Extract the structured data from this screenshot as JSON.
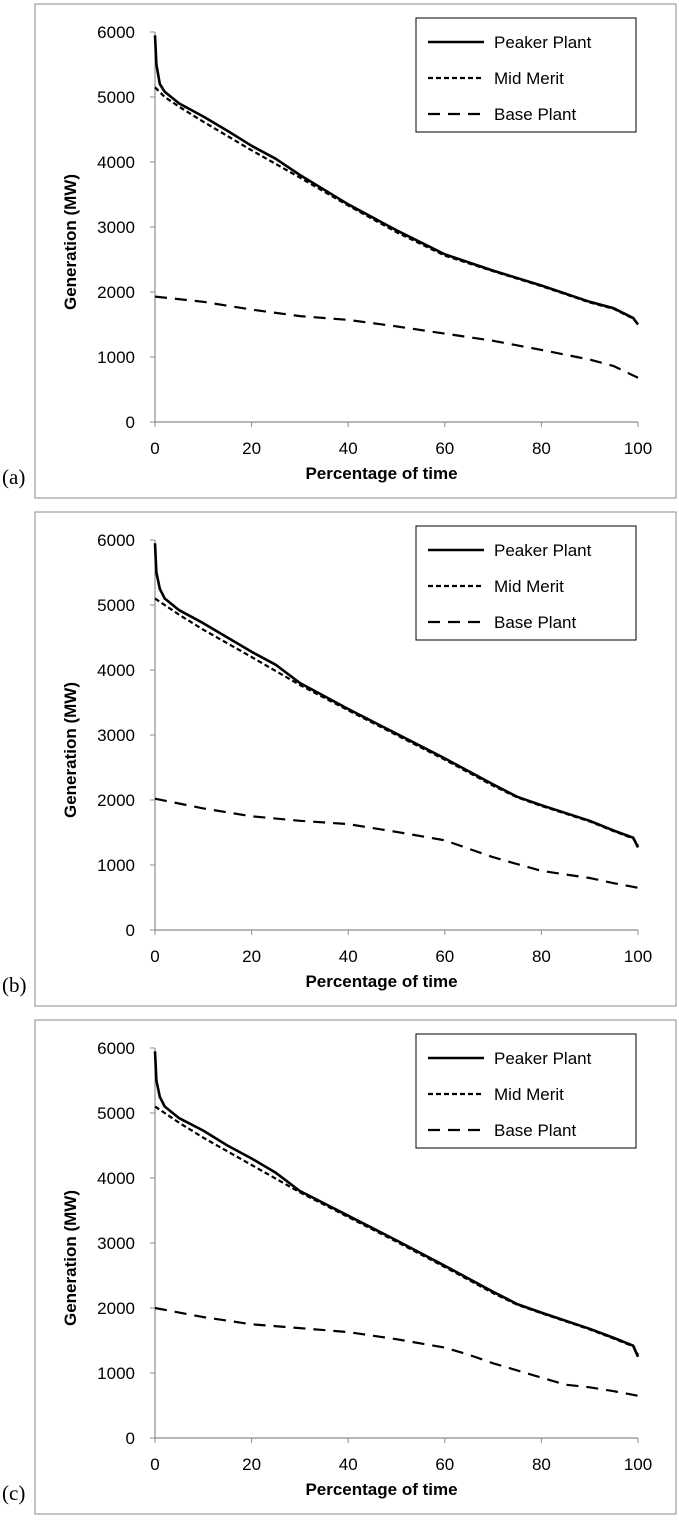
{
  "chart_data": [
    {
      "panel_label": "(a)",
      "type": "line",
      "xlabel": "Percentage of time",
      "ylabel": "Generation (MW)",
      "xlim": [
        0,
        100
      ],
      "ylim": [
        0,
        6000
      ],
      "xticks": [
        "0",
        "20",
        "40",
        "60",
        "80",
        "100"
      ],
      "yticks": [
        "0",
        "1000",
        "2000",
        "3000",
        "4000",
        "5000",
        "6000"
      ],
      "legend_position": "top-right",
      "series": [
        {
          "name": "Peaker Plant",
          "style": "solid",
          "x": [
            0,
            0.3,
            1,
            2,
            5,
            10,
            15,
            20,
            25,
            30,
            40,
            50,
            60,
            70,
            80,
            90,
            95,
            99,
            100
          ],
          "y": [
            5950,
            5500,
            5200,
            5080,
            4900,
            4700,
            4480,
            4250,
            4050,
            3800,
            3350,
            2950,
            2580,
            2330,
            2100,
            1850,
            1750,
            1600,
            1500
          ]
        },
        {
          "name": "Mid Merit",
          "style": "dotted",
          "x": [
            0,
            2,
            5,
            10,
            20,
            30,
            40,
            50,
            60,
            70,
            80,
            90,
            95,
            99,
            100
          ],
          "y": [
            5150,
            5000,
            4850,
            4620,
            4180,
            3760,
            3330,
            2920,
            2560,
            2320,
            2090,
            1840,
            1740,
            1590,
            1500
          ]
        },
        {
          "name": "Base Plant",
          "style": "dashed",
          "x": [
            0,
            10,
            20,
            30,
            40,
            50,
            60,
            70,
            80,
            90,
            95,
            100
          ],
          "y": [
            1930,
            1850,
            1730,
            1630,
            1570,
            1470,
            1360,
            1250,
            1110,
            960,
            860,
            680
          ]
        }
      ]
    },
    {
      "panel_label": "(b)",
      "type": "line",
      "xlabel": "Percentage of time",
      "ylabel": "Generation (MW)",
      "xlim": [
        0,
        100
      ],
      "ylim": [
        0,
        6000
      ],
      "xticks": [
        "0",
        "20",
        "40",
        "60",
        "80",
        "100"
      ],
      "yticks": [
        "0",
        "1000",
        "2000",
        "3000",
        "4000",
        "5000",
        "6000"
      ],
      "legend_position": "top-right",
      "series": [
        {
          "name": "Peaker Plant",
          "style": "solid",
          "x": [
            0,
            0.3,
            1,
            2,
            5,
            10,
            15,
            20,
            25,
            30,
            40,
            50,
            60,
            70,
            75,
            80,
            90,
            95,
            99,
            100
          ],
          "y": [
            5950,
            5500,
            5250,
            5100,
            4920,
            4720,
            4500,
            4280,
            4080,
            3800,
            3400,
            3020,
            2640,
            2240,
            2050,
            1920,
            1680,
            1530,
            1420,
            1270
          ]
        },
        {
          "name": "Mid Merit",
          "style": "dotted",
          "x": [
            0,
            2,
            5,
            10,
            20,
            30,
            40,
            50,
            60,
            70,
            75,
            80,
            90,
            95,
            99,
            100
          ],
          "y": [
            5100,
            5000,
            4850,
            4620,
            4200,
            3770,
            3380,
            3000,
            2620,
            2220,
            2040,
            1910,
            1670,
            1520,
            1410,
            1300
          ]
        },
        {
          "name": "Base Plant",
          "style": "dashed",
          "x": [
            0,
            10,
            20,
            30,
            40,
            50,
            60,
            65,
            70,
            80,
            90,
            95,
            100
          ],
          "y": [
            2020,
            1870,
            1750,
            1680,
            1630,
            1510,
            1380,
            1250,
            1120,
            910,
            800,
            720,
            650
          ]
        }
      ]
    },
    {
      "panel_label": "(c)",
      "type": "line",
      "xlabel": "Percentage of time",
      "ylabel": "Generation (MW)",
      "xlim": [
        0,
        100
      ],
      "ylim": [
        0,
        6000
      ],
      "xticks": [
        "0",
        "20",
        "40",
        "60",
        "80",
        "100"
      ],
      "yticks": [
        "0",
        "1000",
        "2000",
        "3000",
        "4000",
        "5000",
        "6000"
      ],
      "legend_position": "top-right",
      "series": [
        {
          "name": "Peaker Plant",
          "style": "solid",
          "x": [
            0,
            0.3,
            1,
            2,
            5,
            10,
            15,
            20,
            25,
            30,
            40,
            50,
            60,
            70,
            75,
            80,
            90,
            95,
            99,
            100
          ],
          "y": [
            5950,
            5500,
            5250,
            5100,
            4920,
            4730,
            4500,
            4300,
            4080,
            3800,
            3420,
            3040,
            2650,
            2250,
            2060,
            1930,
            1680,
            1540,
            1420,
            1250
          ]
        },
        {
          "name": "Mid Merit",
          "style": "dotted",
          "x": [
            0,
            2,
            5,
            10,
            20,
            30,
            40,
            50,
            60,
            70,
            75,
            80,
            90,
            95,
            99,
            100
          ],
          "y": [
            5100,
            5000,
            4850,
            4620,
            4200,
            3780,
            3400,
            3020,
            2630,
            2230,
            2050,
            1920,
            1670,
            1530,
            1410,
            1280
          ]
        },
        {
          "name": "Base Plant",
          "style": "dashed",
          "x": [
            0,
            10,
            20,
            30,
            40,
            50,
            60,
            65,
            70,
            80,
            85,
            90,
            95,
            100
          ],
          "y": [
            2000,
            1860,
            1750,
            1690,
            1630,
            1520,
            1390,
            1280,
            1150,
            930,
            820,
            780,
            720,
            650
          ]
        }
      ]
    }
  ]
}
